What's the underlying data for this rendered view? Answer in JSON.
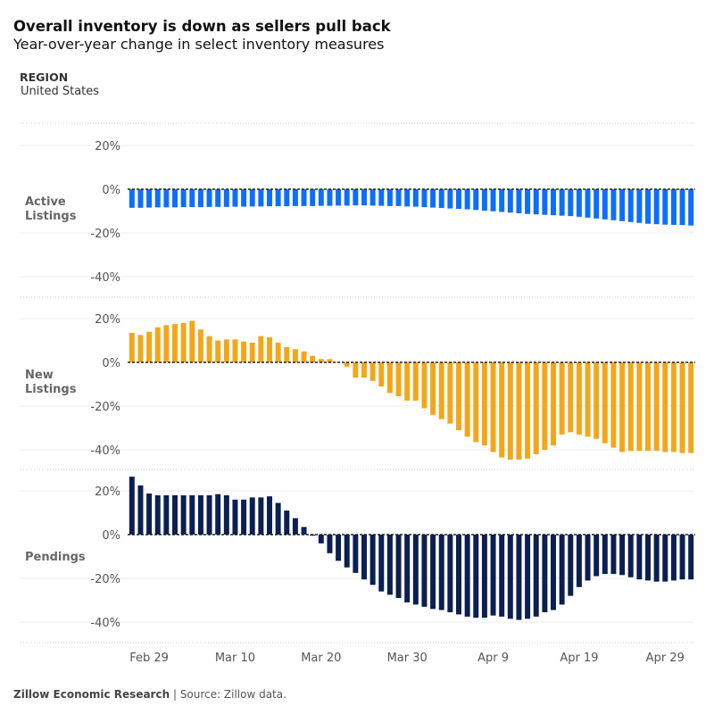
{
  "header": {
    "title": "Overall inventory is down as sellers pull back",
    "subtitle": "Year-over-year change in select inventory measures"
  },
  "filter": {
    "label": "REGION",
    "value": "United States"
  },
  "footer": {
    "brand": "Zillow Economic Research",
    "separator": " | ",
    "source": "Source: Zillow data."
  },
  "chart_data": {
    "type": "bar",
    "x_axis": {
      "tick_labels": [
        "Feb 29",
        "Mar 10",
        "Mar 20",
        "Mar 30",
        "Apr 9",
        "Apr 19",
        "Apr 29"
      ],
      "tick_indices": [
        2,
        12,
        22,
        32,
        42,
        52,
        62
      ]
    },
    "y_axis": {
      "ticks": [
        20,
        0,
        -20,
        -40
      ],
      "tick_labels": [
        "20%",
        "0%",
        "-20%",
        "-40%"
      ],
      "range": [
        -45,
        25
      ]
    },
    "grid": true,
    "zero_line": "dashed",
    "panels": [
      {
        "name": "Active Listings",
        "label_lines": [
          "Active",
          "Listings"
        ],
        "color": "#0d6efd",
        "values": [
          -8.5,
          -8.5,
          -8.4,
          -8.3,
          -8.3,
          -8.3,
          -8.2,
          -8.2,
          -8.2,
          -8.1,
          -8.1,
          -8.1,
          -8.0,
          -8.0,
          -7.9,
          -7.9,
          -7.8,
          -7.8,
          -7.8,
          -7.7,
          -7.7,
          -7.7,
          -7.6,
          -7.6,
          -7.5,
          -7.5,
          -7.4,
          -7.4,
          -7.5,
          -7.6,
          -7.7,
          -7.7,
          -7.9,
          -8.0,
          -8.2,
          -8.4,
          -8.6,
          -8.8,
          -9.0,
          -9.2,
          -9.5,
          -9.8,
          -10.1,
          -10.4,
          -10.7,
          -11.0,
          -11.3,
          -11.5,
          -11.7,
          -11.9,
          -12.1,
          -12.3,
          -12.6,
          -13.0,
          -13.4,
          -13.8,
          -14.2,
          -14.6,
          -15.0,
          -15.4,
          -15.8,
          -16.0,
          -16.2,
          -16.3,
          -16.4,
          -16.6
        ]
      },
      {
        "name": "New Listings",
        "label_lines": [
          "New",
          "Listings"
        ],
        "color": "#f2a71b",
        "values": [
          13.5,
          12.5,
          14,
          16,
          17,
          17.5,
          18,
          19,
          15,
          12,
          10,
          10.5,
          10.5,
          9.5,
          9,
          12,
          11.5,
          9,
          7,
          6,
          5,
          3,
          1.5,
          1.5,
          0,
          -2,
          -7,
          -7,
          -8.5,
          -11,
          -14,
          -15.5,
          -17.5,
          -17.5,
          -21,
          -24,
          -26,
          -28,
          -31,
          -34,
          -36.5,
          -38,
          -41,
          -43.5,
          -44.5,
          -44.5,
          -44,
          -42,
          -40,
          -38,
          -33,
          -32,
          -33,
          -34,
          -35,
          -37,
          -39,
          -41,
          -40.5,
          -40.5,
          -40.5,
          -40.5,
          -41,
          -41,
          -41.5,
          -41.5
        ]
      },
      {
        "name": "Pendings",
        "label_lines": [
          "Pendings"
        ],
        "color": "#0b1f52",
        "values": [
          26.5,
          22.5,
          18.8,
          18,
          18,
          18,
          18,
          18,
          18,
          18,
          18.5,
          18,
          16,
          16,
          17,
          17,
          17.5,
          14.5,
          11,
          7.5,
          3.5,
          -0.5,
          -4,
          -8.5,
          -12,
          -15,
          -17.5,
          -20.5,
          -23,
          -26,
          -27.5,
          -29,
          -31,
          -32,
          -33,
          -34,
          -34.5,
          -35.5,
          -36.5,
          -37.5,
          -38,
          -38,
          -37,
          -37.5,
          -38.5,
          -39,
          -38.5,
          -37.5,
          -35.5,
          -34.5,
          -32,
          -28,
          -24,
          -21,
          -19,
          -18,
          -18,
          -18.5,
          -19.5,
          -20.5,
          -21,
          -21.5,
          -21.5,
          -21,
          -20.5,
          -20.5
        ]
      }
    ]
  }
}
